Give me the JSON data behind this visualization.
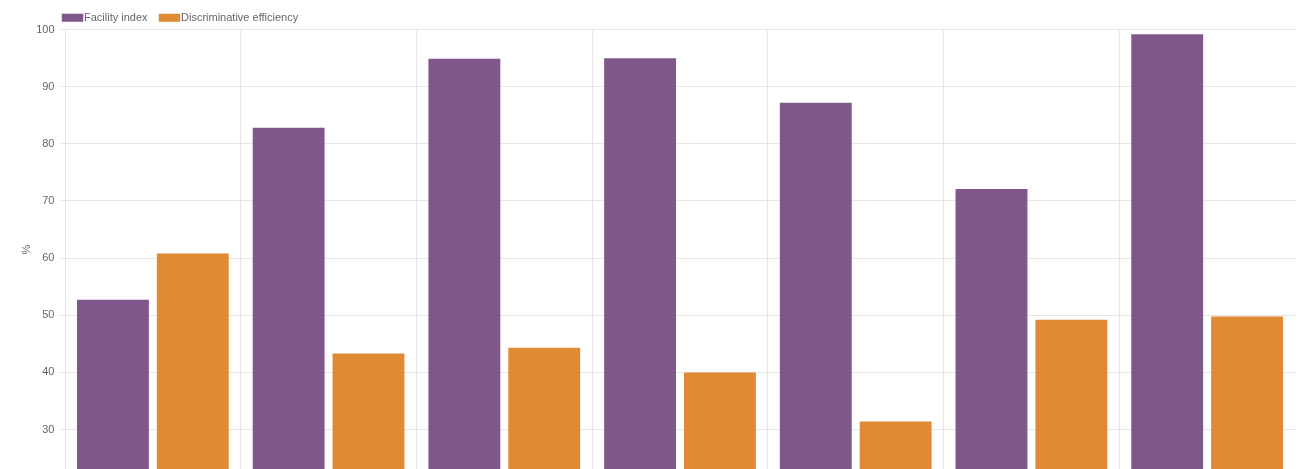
{
  "chart_data": {
    "type": "bar",
    "ylabel": "%",
    "categories": [
      null,
      null,
      null,
      null,
      null,
      null,
      null
    ],
    "series": [
      {
        "name": "Facility index",
        "color": "#80578a",
        "values": [
          52.6,
          82.7,
          94.8,
          94.9,
          87.1,
          72,
          99.1
        ]
      },
      {
        "name": "Discriminative efficiency",
        "color": "#e08a34",
        "values": [
          60.7,
          43.2,
          44.2,
          39.9,
          31.3,
          49.1,
          49.7
        ]
      }
    ],
    "ylim": [
      23,
      100
    ],
    "yticks": [
      30,
      40,
      50,
      60,
      70,
      80,
      90,
      100
    ],
    "grid": true,
    "legend": "top",
    "tick_labels": "y"
  }
}
